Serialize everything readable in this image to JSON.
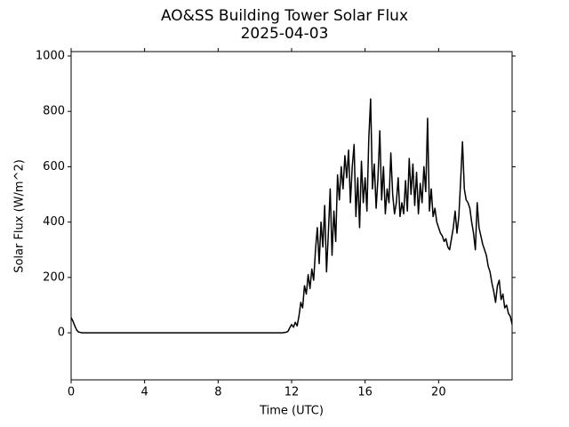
{
  "chart_data": {
    "type": "line",
    "title": "AO&SS Building Tower Solar Flux",
    "subtitle": "2025-04-03",
    "x_label": "Time (UTC)",
    "y_label": "Solar Flux (W/m^2)",
    "color": "#000000",
    "xlim": [
      0,
      24
    ],
    "ylim": [
      -170,
      1016
    ],
    "xticks": [
      0,
      4,
      8,
      12,
      16,
      20
    ],
    "yticks": [
      0,
      200,
      400,
      600,
      800,
      1000
    ],
    "x": [
      0,
      0.1,
      0.2,
      0.3,
      0.4,
      0.6,
      1,
      2,
      3,
      4,
      5,
      6,
      7,
      8,
      9,
      10,
      11,
      11.5,
      11.7,
      11.8,
      11.9,
      12.0,
      12.1,
      12.2,
      12.3,
      12.4,
      12.5,
      12.6,
      12.7,
      12.8,
      12.9,
      13.0,
      13.1,
      13.2,
      13.3,
      13.4,
      13.5,
      13.6,
      13.7,
      13.8,
      13.9,
      14.0,
      14.1,
      14.2,
      14.3,
      14.4,
      14.5,
      14.6,
      14.7,
      14.8,
      14.9,
      15.0,
      15.1,
      15.2,
      15.3,
      15.4,
      15.5,
      15.6,
      15.7,
      15.8,
      15.9,
      16.0,
      16.1,
      16.2,
      16.3,
      16.4,
      16.5,
      16.6,
      16.7,
      16.8,
      16.9,
      17.0,
      17.1,
      17.2,
      17.3,
      17.4,
      17.5,
      17.6,
      17.7,
      17.8,
      17.9,
      18.0,
      18.1,
      18.2,
      18.3,
      18.4,
      18.5,
      18.6,
      18.7,
      18.8,
      18.9,
      19.0,
      19.1,
      19.2,
      19.3,
      19.4,
      19.5,
      19.6,
      19.7,
      19.8,
      19.9,
      20.0,
      20.1,
      20.2,
      20.3,
      20.4,
      20.5,
      20.6,
      20.7,
      20.8,
      20.9,
      21.0,
      21.1,
      21.2,
      21.3,
      21.4,
      21.5,
      21.6,
      21.7,
      21.8,
      21.9,
      22.0,
      22.1,
      22.2,
      22.3,
      22.4,
      22.5,
      22.6,
      22.7,
      22.8,
      22.9,
      23.0,
      23.1,
      23.2,
      23.3,
      23.4,
      23.5,
      23.6,
      23.7,
      23.8,
      23.9,
      24.0
    ],
    "values": [
      55,
      42,
      25,
      10,
      3,
      0,
      0,
      0,
      0,
      0,
      0,
      0,
      0,
      0,
      0,
      0,
      0,
      0,
      2,
      5,
      18,
      30,
      20,
      38,
      25,
      60,
      110,
      90,
      170,
      140,
      210,
      160,
      230,
      190,
      300,
      380,
      250,
      400,
      310,
      460,
      220,
      360,
      520,
      280,
      440,
      330,
      570,
      480,
      600,
      520,
      640,
      560,
      660,
      470,
      600,
      680,
      420,
      560,
      380,
      620,
      470,
      560,
      440,
      700,
      845,
      520,
      610,
      450,
      560,
      730,
      480,
      600,
      430,
      520,
      470,
      650,
      500,
      430,
      470,
      560,
      420,
      470,
      430,
      550,
      440,
      630,
      500,
      610,
      460,
      580,
      430,
      540,
      470,
      600,
      510,
      775,
      440,
      520,
      420,
      450,
      400,
      380,
      360,
      350,
      330,
      340,
      310,
      300,
      340,
      380,
      440,
      360,
      420,
      550,
      690,
      520,
      480,
      470,
      450,
      400,
      360,
      300,
      470,
      380,
      350,
      320,
      300,
      280,
      240,
      220,
      180,
      150,
      110,
      170,
      190,
      120,
      140,
      90,
      100,
      70,
      60,
      30
    ]
  }
}
